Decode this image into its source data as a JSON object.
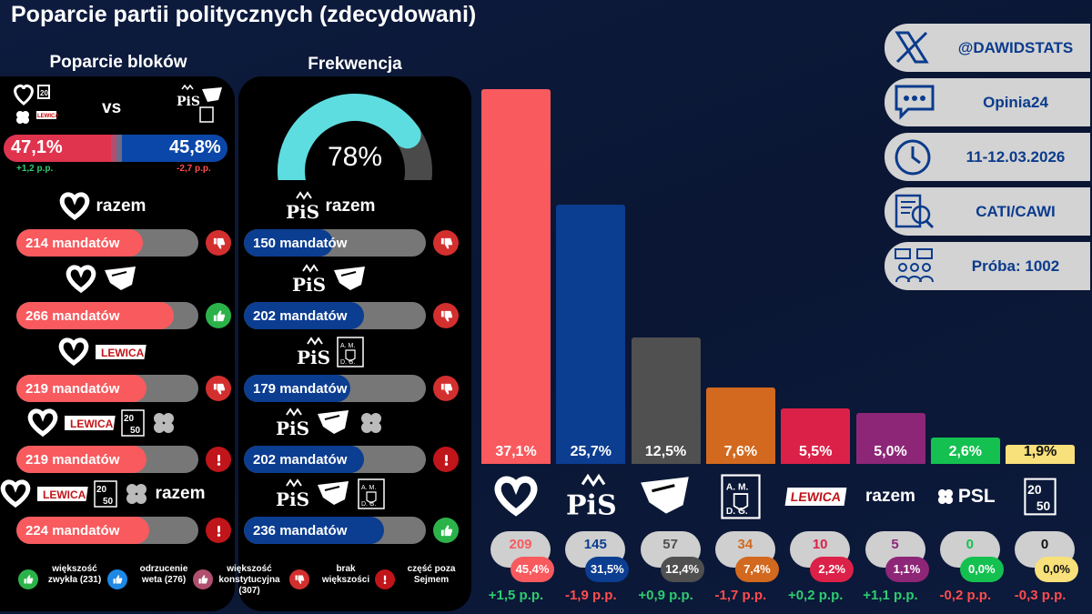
{
  "title": "Poparcie partii politycznych (zdecydowani)",
  "blocks": {
    "label": "Poparcie bloków",
    "vs": "vs",
    "left_pct": "47,1%",
    "right_pct": "45,8%",
    "left_change": "+1,2 p.p.",
    "right_change": "-2,7 p.p.",
    "left_color": "#e0334e",
    "right_color": "#0b47a8"
  },
  "turnout": {
    "label": "Frekwencja",
    "value_text": "78%",
    "value": 78
  },
  "coalitions_left": [
    {
      "seats": "214 mandatów",
      "value": 214,
      "parties": [
        "heart"
      ],
      "text": "razem",
      "icon": "thumbs-down-icon"
    },
    {
      "seats": "266 mandatów",
      "value": 266,
      "parties": [
        "heart",
        "eagle"
      ],
      "text": "",
      "icon": "thumbs-up-icon"
    },
    {
      "seats": "219 mandatów",
      "value": 219,
      "parties": [
        "heart",
        "lewica"
      ],
      "text": "",
      "icon": "thumbs-down-icon"
    },
    {
      "seats": "219 mandatów",
      "value": 219,
      "parties": [
        "heart",
        "lewica",
        "20-50",
        "clover"
      ],
      "text": "",
      "icon": "exclamation-icon"
    },
    {
      "seats": "224 mandatów",
      "value": 224,
      "parties": [
        "heart",
        "lewica",
        "20-50",
        "clover"
      ],
      "text": "razem",
      "icon": "exclamation-icon"
    }
  ],
  "coalitions_right": [
    {
      "seats": "150 mandatów",
      "value": 150,
      "parties": [
        "pis"
      ],
      "text": "razem",
      "icon": "thumbs-down-icon"
    },
    {
      "seats": "202 mandatów",
      "value": 202,
      "parties": [
        "pis",
        "eagle"
      ],
      "text": "",
      "icon": "thumbs-down-icon"
    },
    {
      "seats": "179 mandatów",
      "value": 179,
      "parties": [
        "pis",
        "amdg"
      ],
      "text": "",
      "icon": "thumbs-down-icon"
    },
    {
      "seats": "202 mandatów",
      "value": 202,
      "parties": [
        "pis",
        "eagle",
        "clover"
      ],
      "text": "",
      "icon": "exclamation-icon"
    },
    {
      "seats": "236 mandatów",
      "value": 236,
      "parties": [
        "pis",
        "eagle",
        "amdg"
      ],
      "text": "",
      "icon": "thumbs-up-icon"
    }
  ],
  "legend": [
    {
      "text": "większość zwykła (231)",
      "color": "#2bb34a",
      "icon": "thumbs-up-icon"
    },
    {
      "text": "odrzucenie weta (276)",
      "color": "#1e88e5",
      "icon": "thumbs-up-icon"
    },
    {
      "text": "większość konstytucyjna (307)",
      "color": "#b0506e",
      "icon": "thumbs-up-icon"
    },
    {
      "text": "brak większości",
      "color": "#d32f2f",
      "icon": "thumbs-down-icon"
    },
    {
      "text": "część poza Sejmem",
      "color": "#c0151a",
      "icon": "exclamation-icon"
    }
  ],
  "info": [
    {
      "text": "@DAWIDSTATS",
      "icon": "x-logo-icon"
    },
    {
      "text": "Opinia24",
      "icon": "chat-bubble-icon"
    },
    {
      "text": "11-12.03.2026",
      "icon": "clock-icon"
    },
    {
      "text": "CATI/CAWI",
      "icon": "document-icon"
    },
    {
      "text": "Próba: 1002",
      "icon": "people-icon"
    }
  ],
  "chart_data": {
    "type": "bar",
    "title": "Poparcie partii politycznych (zdecydowani)",
    "categories": [
      "heart",
      "PiS",
      "eagle",
      "AMDG",
      "LEWICA",
      "razem",
      "PSL",
      "20-50"
    ],
    "values": [
      37.1,
      25.7,
      12.5,
      7.6,
      5.5,
      5.0,
      2.6,
      1.9
    ],
    "value_labels": [
      "37,1%",
      "25,7%",
      "12,5%",
      "7,6%",
      "5,5%",
      "5,0%",
      "2,6%",
      "1,9%"
    ],
    "seats": [
      "209",
      "145",
      "57",
      "34",
      "10",
      "5",
      "0",
      "0"
    ],
    "seat_pct": [
      "45,4%",
      "31,5%",
      "12,4%",
      "7,4%",
      "2,2%",
      "1,1%",
      "0,0%",
      "0,0%"
    ],
    "changes": [
      "+1,5 p.p.",
      "-1,9 p.p.",
      "+0,9 p.p.",
      "-1,7 p.p.",
      "+0,2 p.p.",
      "+1,1 p.p.",
      "-0,2 p.p.",
      "-0,3 p.p."
    ],
    "colors": [
      "#f85a5e",
      "#0b3d91",
      "#505050",
      "#d2691e",
      "#dc2148",
      "#8e2678",
      "#14c150",
      "#f8e07a"
    ],
    "seat_text_colors": [
      "#f85a5e",
      "#0b3d91",
      "#505050",
      "#d2691e",
      "#dc2148",
      "#8e2678",
      "#14c150",
      "#111111"
    ],
    "change_colors": [
      "#2ecc71",
      "#ff4d4d",
      "#2ecc71",
      "#ff4d4d",
      "#2ecc71",
      "#2ecc71",
      "#ff4d4d",
      "#ff4d4d"
    ],
    "logo_labels": [
      "",
      "PiS",
      "",
      "",
      "LEWICA",
      "razem",
      "PSL",
      ""
    ],
    "ylim": [
      0,
      40
    ]
  }
}
